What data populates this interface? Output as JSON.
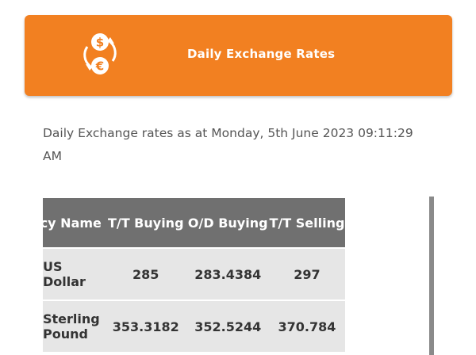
{
  "header": {
    "title": "Daily Exchange Rates",
    "icon": "currency-exchange-icon",
    "color": "#f28021"
  },
  "subtitle": "Daily Exchange rates as at Monday, 5th June 2023 09:11:29 AM",
  "table": {
    "columns": [
      "Currency Name",
      "T/T Buying",
      "O/D Buying",
      "T/T Selling"
    ],
    "rows": [
      [
        "US Dollar",
        "285",
        "283.4384",
        "297"
      ],
      [
        "Sterling Pound",
        "353.3182",
        "352.5244",
        "370.784"
      ]
    ]
  }
}
